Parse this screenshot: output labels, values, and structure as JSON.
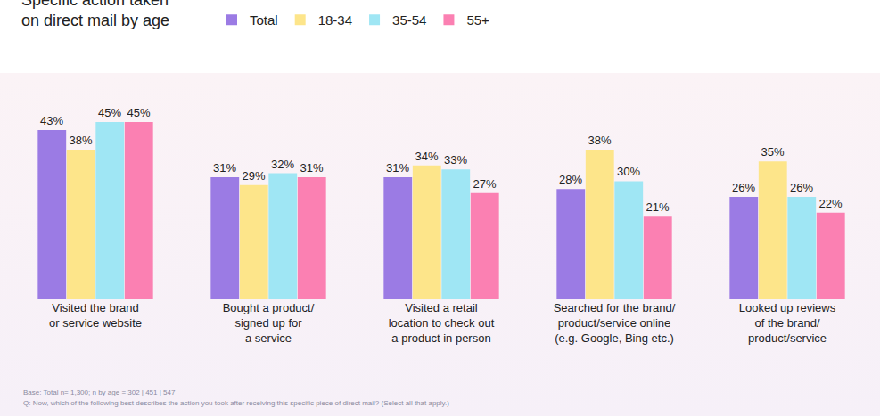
{
  "chart_data": {
    "type": "bar",
    "title": "Specific action taken\non direct mail by age",
    "categories": [
      "Visited the brand\nor service website",
      "Bought a product/\nsigned up for\na service",
      "Visited a retail\nlocation to check out\na product in person",
      "Searched for the brand/\nproduct/service online\n(e.g. Google, Bing etc.)",
      "Looked up reviews\nof the brand/\nproduct/service"
    ],
    "series": [
      {
        "name": "Total",
        "color": "#9b7be4",
        "values": [
          43,
          31,
          31,
          28,
          26
        ],
        "value_labels": [
          "43%",
          "31%",
          "31%",
          "28%",
          "26%"
        ]
      },
      {
        "name": "18-34",
        "color": "#fde58a",
        "values": [
          38,
          29,
          34,
          38,
          35
        ],
        "value_labels": [
          "38%",
          "29%",
          "34%",
          "38%",
          "35%"
        ]
      },
      {
        "name": "35-54",
        "color": "#9fe6f4",
        "values": [
          45,
          32,
          33,
          30,
          26
        ],
        "value_labels": [
          "45%",
          "32%",
          "33%",
          "30%",
          "26%"
        ]
      },
      {
        "name": "55+",
        "color": "#fb80b2",
        "values": [
          45,
          31,
          27,
          21,
          22
        ],
        "value_labels": [
          "45%",
          "31%",
          "27%",
          "21%",
          "22%"
        ]
      }
    ],
    "ylim": [
      0,
      50
    ],
    "tick_labels": "x",
    "grid": false,
    "data_labels": true,
    "legend": "top",
    "annotations": [
      "Base: Total n= 1,300; n by age = 302 | 451 | 547",
      "Q: Now, which of the following best describes the action you took after receiving this specific piece of direct mail? (Select all that apply.)"
    ]
  }
}
